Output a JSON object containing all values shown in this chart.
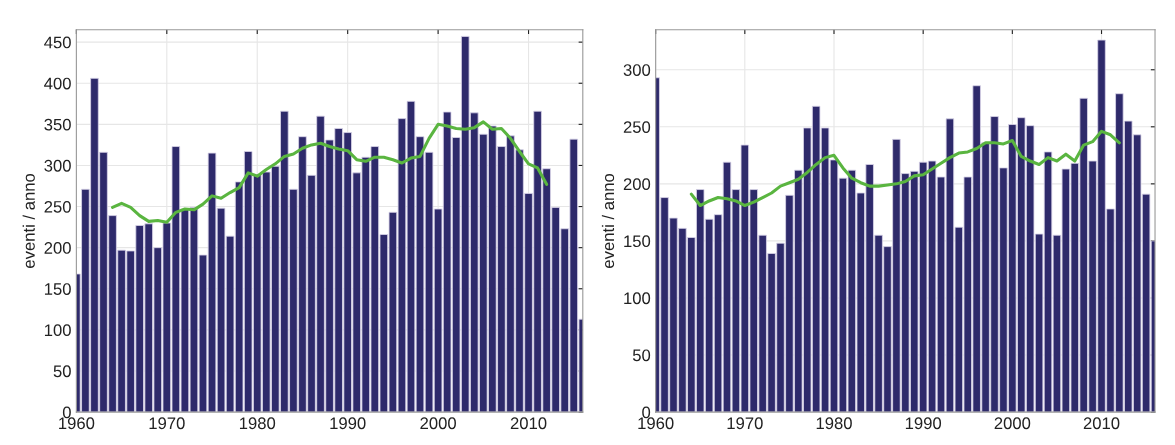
{
  "chart_data": [
    {
      "type": "bar",
      "ylabel": "eventi / anno",
      "xlim": [
        1960,
        2016
      ],
      "ylim": [
        0,
        465
      ],
      "xticks": [
        1960,
        1970,
        1980,
        1990,
        2000,
        2010
      ],
      "yticks": [
        0,
        50,
        100,
        150,
        200,
        250,
        300,
        350,
        400,
        450
      ],
      "grid": true,
      "series": [
        {
          "color": "#2e2a6b",
          "x": [
            1960,
            1961,
            1962,
            1963,
            1964,
            1965,
            1966,
            1967,
            1968,
            1969,
            1970,
            1971,
            1972,
            1973,
            1974,
            1975,
            1976,
            1977,
            1978,
            1979,
            1980,
            1981,
            1982,
            1983,
            1984,
            1985,
            1986,
            1987,
            1988,
            1989,
            1990,
            1991,
            1992,
            1993,
            1994,
            1995,
            1996,
            1997,
            1998,
            1999,
            2000,
            2001,
            2002,
            2003,
            2004,
            2005,
            2006,
            2007,
            2008,
            2009,
            2010,
            2011,
            2012,
            2013,
            2014,
            2015,
            2016
          ],
          "values": [
            168,
            271,
            406,
            316,
            239,
            197,
            196,
            227,
            229,
            200,
            230,
            323,
            247,
            249,
            191,
            315,
            248,
            214,
            280,
            317,
            289,
            292,
            299,
            366,
            271,
            335,
            288,
            360,
            331,
            345,
            340,
            291,
            310,
            323,
            216,
            243,
            357,
            378,
            335,
            316,
            247,
            365,
            334,
            457,
            364,
            338,
            348,
            323,
            336,
            319,
            266,
            366,
            296,
            249,
            223,
            332,
            113
          ]
        },
        {
          "type": "line",
          "color": "#5ab540",
          "x": [
            1964,
            1965,
            1966,
            1967,
            1968,
            1969,
            1970,
            1971,
            1972,
            1973,
            1974,
            1975,
            1976,
            1977,
            1978,
            1979,
            1980,
            1981,
            1982,
            1983,
            1984,
            1985,
            1986,
            1987,
            1988,
            1989,
            1990,
            1991,
            1992,
            1993,
            1994,
            1995,
            1996,
            1997,
            1998,
            1999,
            2000,
            2001,
            2002,
            2003,
            2004,
            2005,
            2006,
            2007,
            2008,
            2009,
            2010,
            2011,
            2012
          ],
          "values": [
            249,
            254,
            249,
            239,
            232,
            233,
            231,
            243,
            247,
            246,
            253,
            263,
            260,
            267,
            273,
            291,
            287,
            295,
            302,
            311,
            314,
            321,
            325,
            327,
            323,
            320,
            318,
            307,
            305,
            310,
            310,
            307,
            303,
            309,
            311,
            333,
            350,
            348,
            345,
            344,
            346,
            353,
            344,
            345,
            333,
            317,
            302,
            297,
            277
          ]
        }
      ]
    },
    {
      "type": "bar",
      "ylabel": "eventi / anno",
      "xlim": [
        1960,
        2016
      ],
      "ylim": [
        0,
        335
      ],
      "xticks": [
        1960,
        1970,
        1980,
        1990,
        2000,
        2010
      ],
      "yticks": [
        0,
        50,
        100,
        150,
        200,
        250,
        300
      ],
      "grid": true,
      "series": [
        {
          "color": "#2e2a6b",
          "x": [
            1960,
            1961,
            1962,
            1963,
            1964,
            1965,
            1966,
            1967,
            1968,
            1969,
            1970,
            1971,
            1972,
            1973,
            1974,
            1975,
            1976,
            1977,
            1978,
            1979,
            1980,
            1981,
            1982,
            1983,
            1984,
            1985,
            1986,
            1987,
            1988,
            1989,
            1990,
            1991,
            1992,
            1993,
            1994,
            1995,
            1996,
            1997,
            1998,
            1999,
            2000,
            2001,
            2002,
            2003,
            2004,
            2005,
            2006,
            2007,
            2008,
            2009,
            2010,
            2011,
            2012,
            2013,
            2014,
            2015,
            2016
          ],
          "values": [
            293,
            188,
            170,
            161,
            153,
            195,
            169,
            173,
            219,
            195,
            234,
            195,
            155,
            139,
            148,
            190,
            212,
            249,
            268,
            249,
            221,
            205,
            212,
            192,
            217,
            155,
            145,
            239,
            209,
            211,
            219,
            220,
            206,
            257,
            162,
            206,
            286,
            236,
            259,
            214,
            252,
            258,
            251,
            156,
            228,
            155,
            213,
            218,
            275,
            220,
            326,
            178,
            279,
            255,
            243,
            191,
            150
          ]
        },
        {
          "type": "line",
          "color": "#5ab540",
          "x": [
            1964,
            1965,
            1966,
            1967,
            1968,
            1969,
            1970,
            1971,
            1972,
            1973,
            1974,
            1975,
            1976,
            1977,
            1978,
            1979,
            1980,
            1981,
            1982,
            1983,
            1984,
            1985,
            1986,
            1987,
            1988,
            1989,
            1990,
            1991,
            1992,
            1993,
            1994,
            1995,
            1996,
            1997,
            1998,
            1999,
            2000,
            2001,
            2002,
            2003,
            2004,
            2005,
            2006,
            2007,
            2008,
            2009,
            2010,
            2011,
            2012
          ],
          "values": [
            191,
            181,
            185,
            188,
            187,
            185,
            181,
            184,
            188,
            192,
            198,
            201,
            204,
            210,
            217,
            223,
            225,
            214,
            205,
            201,
            198,
            198,
            199,
            200,
            202,
            207,
            208,
            213,
            218,
            223,
            227,
            228,
            231,
            236,
            236,
            235,
            238,
            224,
            220,
            217,
            223,
            220,
            226,
            220,
            234,
            237,
            246,
            243,
            236
          ]
        }
      ]
    }
  ]
}
